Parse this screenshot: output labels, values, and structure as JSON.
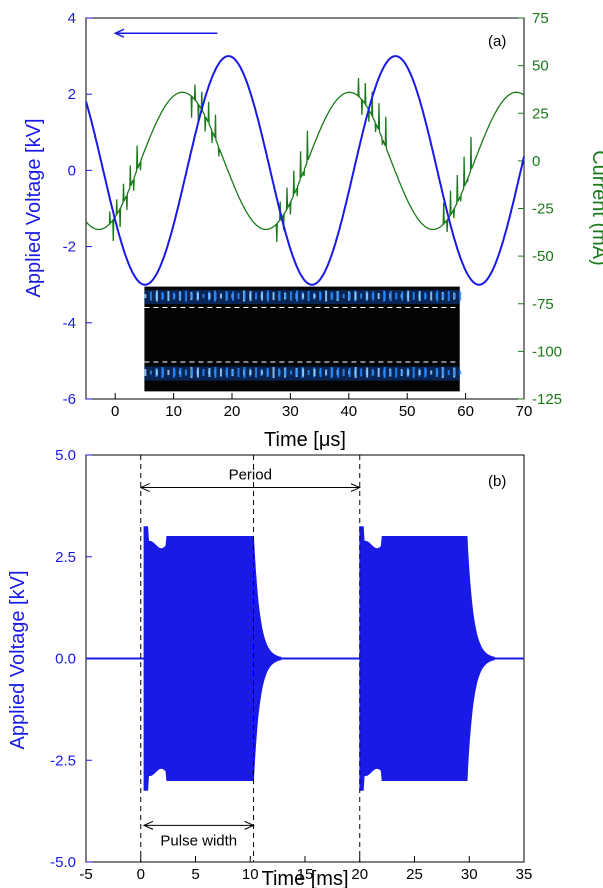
{
  "colors": {
    "voltage": "#1a1ae6",
    "current": "#1a7a1a",
    "axis": "#000000",
    "inset_bg": "#050505",
    "inset_glow": "#2a8cff"
  },
  "chart_data": [
    {
      "id": "a",
      "type": "line",
      "panel_label": "(a)",
      "xlabel": "Time [μs]",
      "ylabel_left": "Applied Voltage [kV]",
      "ylabel_right": "Current (mA)",
      "xlim": [
        -5,
        70
      ],
      "ylim_left": [
        -6,
        4
      ],
      "ylim_right": [
        -125,
        75
      ],
      "xticks": [
        0,
        10,
        20,
        30,
        40,
        50,
        60,
        70
      ],
      "yticks_left": [
        -6,
        -4,
        -2,
        0,
        2,
        4
      ],
      "yticks_right": [
        -125,
        -100,
        -75,
        -50,
        -25,
        0,
        25,
        50,
        75
      ],
      "series": [
        {
          "axis": "left",
          "color": "voltage",
          "form": "sine",
          "amplitude": 3.0,
          "period_us": 28.6,
          "phase_peak_us": 19.4
        },
        {
          "axis": "right",
          "color": "current",
          "form": "sine",
          "amplitude": 36,
          "period_us": 28.6,
          "phase_peak_us": 11.5
        }
      ],
      "arrow": {
        "from_x": 17.5,
        "to_x": 0,
        "y": 3.6,
        "axis": "left"
      },
      "inset": {
        "x0": 5,
        "x1": 59,
        "y_top": -3.05,
        "y_bottom": -5.8,
        "axis": "left"
      }
    },
    {
      "id": "b",
      "type": "line",
      "panel_label": "(b)",
      "xlabel": "Time [ms]",
      "ylabel": "Applied Voltage [kV]",
      "xlim": [
        -5,
        35
      ],
      "ylim": [
        -5,
        5
      ],
      "xticks": [
        -5,
        0,
        5,
        10,
        15,
        20,
        25,
        30,
        35
      ],
      "yticks": [
        -5.0,
        -2.5,
        0.0,
        2.5,
        5.0
      ],
      "ytick_labels": [
        "-5.0",
        "-2.5",
        "0.0",
        "2.5",
        "5.0"
      ],
      "series": [
        {
          "color": "voltage",
          "form": "burst",
          "bursts": [
            [
              0.3,
              10.3
            ],
            [
              20.0,
              29.8
            ]
          ],
          "amplitude": 3.0
        }
      ],
      "dashed_lines_x": [
        0,
        10.3,
        20
      ],
      "period_label": "Period",
      "period_span": [
        0,
        20
      ],
      "pulse_width_label": "Pulse width",
      "pulse_width_span": [
        0.3,
        10.3
      ]
    }
  ]
}
